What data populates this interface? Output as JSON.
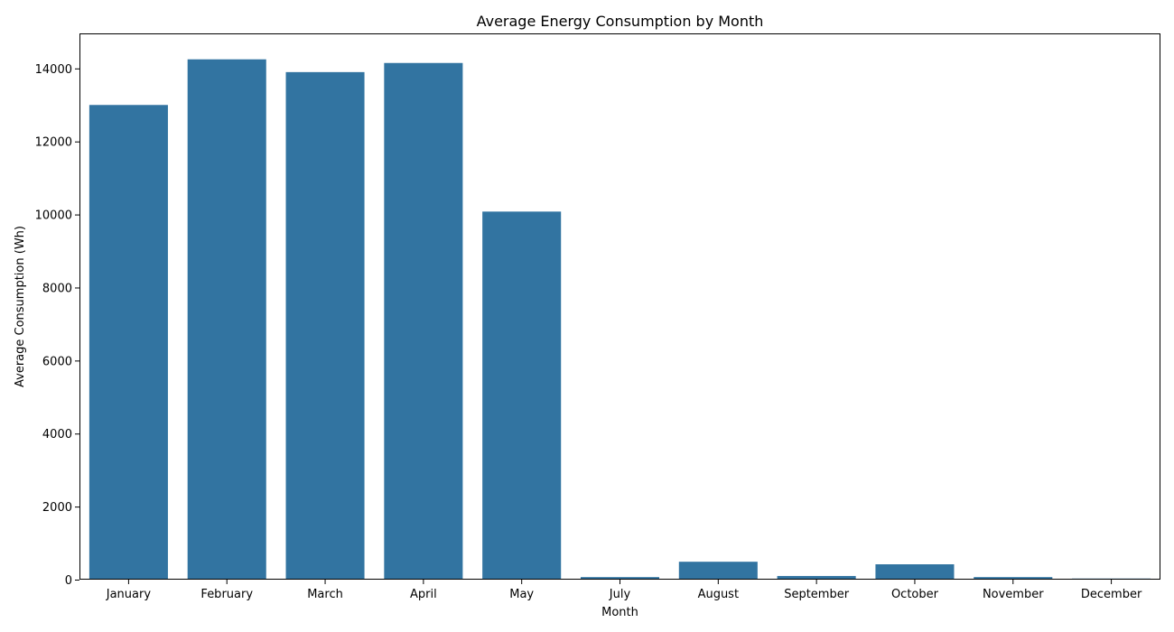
{
  "chart_data": {
    "type": "bar",
    "title": "Average Energy Consumption by Month",
    "xlabel": "Month",
    "ylabel": "Average Consumption (Wh)",
    "categories": [
      "January",
      "February",
      "March",
      "April",
      "May",
      "July",
      "August",
      "September",
      "October",
      "November",
      "December"
    ],
    "values": [
      13000,
      14250,
      13900,
      14150,
      10080,
      70,
      490,
      100,
      420,
      70,
      30
    ],
    "ylim": [
      0,
      14960
    ],
    "yticks": [
      0,
      2000,
      4000,
      6000,
      8000,
      10000,
      12000,
      14000
    ],
    "bar_color": "#3274a1",
    "grid": false,
    "legend": false
  }
}
